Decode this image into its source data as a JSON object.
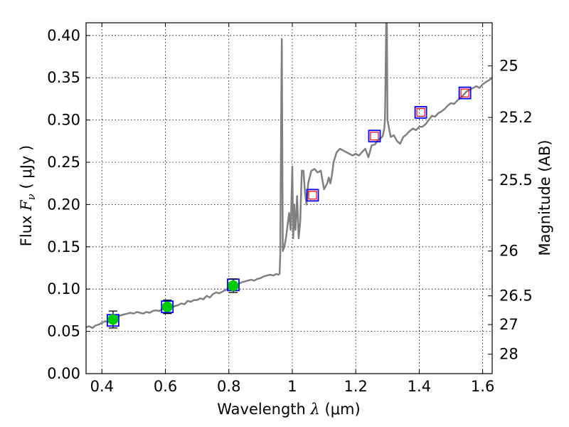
{
  "chart_data": {
    "type": "line",
    "xlabel": {
      "prefix": "Wavelength  ",
      "symbol": "λ",
      "unit": " (μm)"
    },
    "ylabel": {
      "prefix": "Flux  ",
      "symbol": "F",
      "subscript": "ν",
      "unit": "  ( μJy )"
    },
    "y2label": "Magnitude (AB)",
    "xlim": [
      0.35,
      1.63
    ],
    "ylim": [
      0.0,
      0.415
    ],
    "grid": true,
    "x_ticks": [
      0.4,
      0.6,
      0.8,
      1.0,
      1.2,
      1.4,
      1.6
    ],
    "x_tick_labels": [
      "0.4",
      "0.6",
      "0.8",
      "1",
      "1.2",
      "1.4",
      "1.6"
    ],
    "y_ticks": [
      0.0,
      0.05,
      0.1,
      0.15,
      0.2,
      0.25,
      0.3,
      0.35,
      0.4
    ],
    "y_tick_labels": [
      "0.00",
      "0.05",
      "0.10",
      "0.15",
      "0.20",
      "0.25",
      "0.30",
      "0.35",
      "0.40"
    ],
    "y2_ticks": [
      {
        "label": "25",
        "flux": 0.364
      },
      {
        "label": "25.2",
        "flux": 0.303
      },
      {
        "label": "25.5",
        "flux": 0.229
      },
      {
        "label": "26",
        "flux": 0.145
      },
      {
        "label": "26.5",
        "flux": 0.092
      },
      {
        "label": "27",
        "flux": 0.058
      },
      {
        "label": "28",
        "flux": 0.023
      }
    ],
    "colors": {
      "model": "#808080",
      "detections": "#00cc00",
      "model_box": "#0000ff",
      "model_box_inner": "#ff0000",
      "errorbar": "#000000"
    },
    "series": [
      {
        "kind": "model_spectrum",
        "x": [
          0.35,
          0.36,
          0.37,
          0.38,
          0.39,
          0.4,
          0.41,
          0.42,
          0.43,
          0.44,
          0.45,
          0.46,
          0.47,
          0.48,
          0.49,
          0.5,
          0.51,
          0.52,
          0.53,
          0.54,
          0.55,
          0.56,
          0.57,
          0.58,
          0.59,
          0.6,
          0.61,
          0.62,
          0.63,
          0.64,
          0.65,
          0.66,
          0.67,
          0.68,
          0.69,
          0.7,
          0.71,
          0.72,
          0.73,
          0.74,
          0.75,
          0.76,
          0.77,
          0.78,
          0.79,
          0.8,
          0.81,
          0.82,
          0.83,
          0.84,
          0.85,
          0.86,
          0.87,
          0.88,
          0.89,
          0.9,
          0.91,
          0.92,
          0.93,
          0.94,
          0.95,
          0.955,
          0.96,
          0.962,
          0.965,
          0.967,
          0.97,
          0.975,
          0.98,
          0.99,
          0.995,
          1.0,
          1.003,
          1.006,
          1.01,
          1.015,
          1.02,
          1.025,
          1.03,
          1.035,
          1.04,
          1.045,
          1.05,
          1.06,
          1.07,
          1.08,
          1.09,
          1.1,
          1.11,
          1.115,
          1.12,
          1.125,
          1.13,
          1.14,
          1.15,
          1.16,
          1.17,
          1.18,
          1.19,
          1.2,
          1.21,
          1.22,
          1.23,
          1.24,
          1.25,
          1.26,
          1.27,
          1.28,
          1.285,
          1.29,
          1.292,
          1.294,
          1.296,
          1.298,
          1.3,
          1.305,
          1.31,
          1.32,
          1.33,
          1.34,
          1.35,
          1.36,
          1.37,
          1.38,
          1.39,
          1.4,
          1.41,
          1.42,
          1.43,
          1.44,
          1.45,
          1.46,
          1.47,
          1.48,
          1.49,
          1.5,
          1.51,
          1.52,
          1.53,
          1.54,
          1.55,
          1.56,
          1.57,
          1.58,
          1.59,
          1.6,
          1.61,
          1.62,
          1.63
        ],
        "y": [
          0.055,
          0.056,
          0.054,
          0.057,
          0.058,
          0.06,
          0.062,
          0.061,
          0.063,
          0.066,
          0.068,
          0.069,
          0.07,
          0.071,
          0.072,
          0.071,
          0.073,
          0.072,
          0.071,
          0.073,
          0.072,
          0.074,
          0.075,
          0.074,
          0.076,
          0.077,
          0.078,
          0.078,
          0.08,
          0.081,
          0.083,
          0.082,
          0.086,
          0.085,
          0.087,
          0.087,
          0.089,
          0.088,
          0.092,
          0.09,
          0.094,
          0.096,
          0.095,
          0.097,
          0.099,
          0.101,
          0.103,
          0.105,
          0.106,
          0.108,
          0.109,
          0.11,
          0.111,
          0.11,
          0.112,
          0.113,
          0.115,
          0.116,
          0.117,
          0.116,
          0.118,
          0.117,
          0.118,
          0.14,
          0.3,
          0.396,
          0.145,
          0.15,
          0.16,
          0.19,
          0.17,
          0.245,
          0.16,
          0.2,
          0.17,
          0.21,
          0.16,
          0.18,
          0.24,
          0.24,
          0.215,
          0.2,
          0.225,
          0.24,
          0.242,
          0.238,
          0.24,
          0.218,
          0.225,
          0.232,
          0.225,
          0.235,
          0.25,
          0.262,
          0.266,
          0.264,
          0.262,
          0.26,
          0.258,
          0.26,
          0.258,
          0.262,
          0.266,
          0.256,
          0.27,
          0.271,
          0.276,
          0.279,
          0.281,
          0.29,
          0.3,
          0.35,
          0.415,
          0.415,
          0.3,
          0.29,
          0.28,
          0.282,
          0.275,
          0.272,
          0.28,
          0.283,
          0.287,
          0.29,
          0.288,
          0.292,
          0.292,
          0.295,
          0.3,
          0.305,
          0.304,
          0.308,
          0.31,
          0.313,
          0.317,
          0.32,
          0.319,
          0.323,
          0.326,
          0.33,
          0.334,
          0.336,
          0.338,
          0.34,
          0.338,
          0.342,
          0.345,
          0.347,
          0.35
        ]
      },
      {
        "kind": "photometry",
        "name_hint": "detections",
        "x": [
          0.435,
          0.606,
          0.814
        ],
        "y": [
          0.064,
          0.079,
          0.104
        ],
        "yerr": [
          0.01,
          0.008,
          0.008
        ],
        "model_y": [
          0.063,
          0.079,
          0.105
        ]
      },
      {
        "kind": "model_photometry",
        "x": [
          1.064,
          1.259,
          1.405,
          1.544
        ],
        "y": [
          0.211,
          0.281,
          0.309,
          0.332
        ]
      }
    ]
  }
}
